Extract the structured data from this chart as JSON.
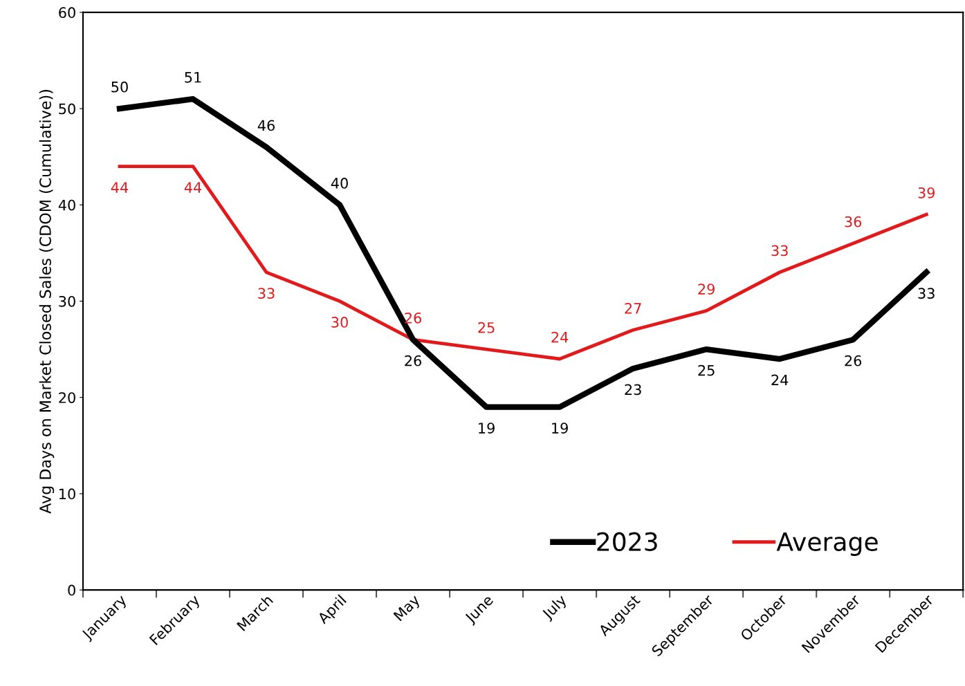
{
  "chart_data": {
    "type": "line",
    "ylabel": "Avg Days on Market Closed Sales (CDOM (Cumulative))",
    "categories": [
      "January",
      "February",
      "March",
      "April",
      "May",
      "June",
      "July",
      "August",
      "September",
      "October",
      "November",
      "December"
    ],
    "series": [
      {
        "name": "2023",
        "color": "#000000",
        "values": [
          50,
          51,
          46,
          40,
          26,
          19,
          19,
          23,
          25,
          24,
          26,
          33
        ]
      },
      {
        "name": "Average",
        "color": "#e31a1c",
        "values": [
          44,
          44,
          33,
          30,
          26,
          25,
          24,
          27,
          29,
          33,
          36,
          39
        ]
      }
    ],
    "ylim": [
      0,
      60
    ],
    "yticks": [
      0,
      10,
      20,
      30,
      40,
      50,
      60
    ],
    "grid": false,
    "legend": "bottom right",
    "data_labels": true,
    "marker": "none",
    "line_style": "solid"
  }
}
